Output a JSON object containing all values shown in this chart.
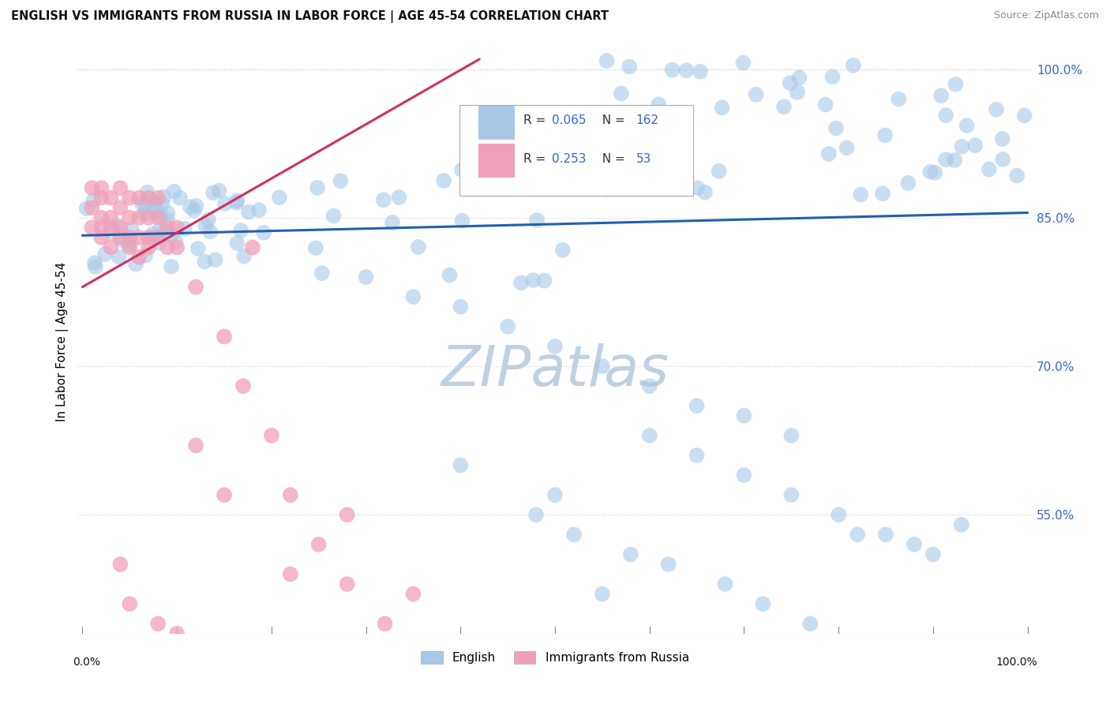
{
  "title": "ENGLISH VS IMMIGRANTS FROM RUSSIA IN LABOR FORCE | AGE 45-54 CORRELATION CHART",
  "source": "Source: ZipAtlas.com",
  "ylabel": "In Labor Force | Age 45-54",
  "x_min": 0.0,
  "x_max": 1.0,
  "y_min": 0.43,
  "y_max": 1.02,
  "right_yticks": [
    0.55,
    0.7,
    0.85,
    1.0
  ],
  "right_yticklabels": [
    "55.0%",
    "70.0%",
    "85.0%",
    "100.0%"
  ],
  "english_R": 0.065,
  "english_N": 162,
  "russia_R": 0.253,
  "russia_N": 53,
  "english_color": "#a8c8e8",
  "russia_color": "#f0a0b8",
  "english_trend_color": "#2060b0",
  "russia_trend_color": "#d03060",
  "watermark_text": "ZIPatlas",
  "watermark_color": "#c0d0e0",
  "background_color": "#ffffff",
  "grid_color": "#d0d0d0",
  "eng_trend_x0": 0.0,
  "eng_trend_y0": 0.832,
  "eng_trend_x1": 1.0,
  "eng_trend_y1": 0.855,
  "rus_trend_x0": 0.0,
  "rus_trend_y0": 0.78,
  "rus_trend_x1": 0.42,
  "rus_trend_y1": 1.01
}
